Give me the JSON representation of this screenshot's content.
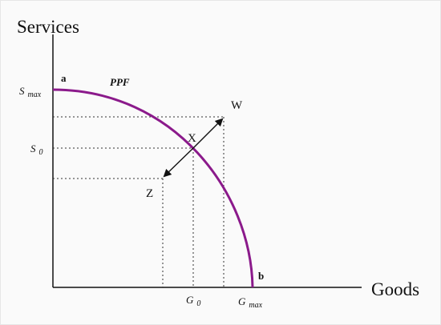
{
  "axes": {
    "y_title": "Services",
    "x_title": "Goods"
  },
  "curve": {
    "label": "PPF",
    "color": "#8b1a8b"
  },
  "y_ticks": {
    "smax_main": "S",
    "smax_sub": "max",
    "s0_main": "S",
    "s0_sub": "0"
  },
  "x_ticks": {
    "g0_main": "G",
    "g0_sub": "0",
    "gmax_main": "G",
    "gmax_sub": "max"
  },
  "points": {
    "a": "a",
    "b": "b",
    "w": "W",
    "x": "X",
    "z": "Z"
  }
}
